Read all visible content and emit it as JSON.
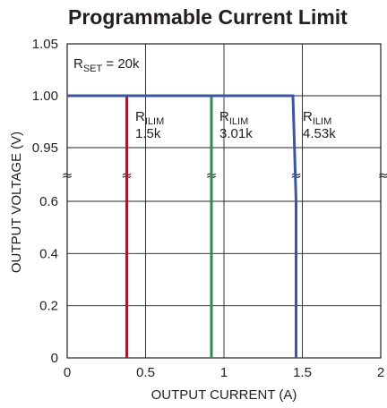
{
  "chart_data": {
    "type": "line",
    "title": "Programmable Current Limit",
    "xlabel": "OUTPUT CURRENT (A)",
    "ylabel": "OUTPUT VOLTAGE (V)",
    "xlim": [
      0,
      2
    ],
    "x_ticks": [
      "0",
      "0.5",
      "1",
      "1.5",
      "2"
    ],
    "y_ticks_upper": [
      "1.05",
      "1.00",
      "0.95"
    ],
    "y_ticks_lower": [
      "0.6",
      "0.4",
      "0.2",
      "0"
    ],
    "y_axis": "broken between 0.6 and 0.95",
    "grid": true,
    "annotation": {
      "main": "R",
      "sub": "SET",
      "rest": " = 20k"
    },
    "series_label_main": "R",
    "series_label_sub": "ILIM",
    "series": [
      {
        "label_value": "1.5k",
        "color": "#9e1b34",
        "x": [
          0,
          0.38,
          0.38,
          0.38
        ],
        "y": [
          1.0,
          1.0,
          0.6,
          0
        ]
      },
      {
        "label_value": "3.01k",
        "color": "#2e8b4f",
        "x": [
          0,
          0.92,
          0.92,
          0.92
        ],
        "y": [
          1.0,
          1.0,
          0.6,
          0
        ]
      },
      {
        "label_value": "4.53k",
        "color": "#3b55a4",
        "x": [
          0,
          1.44,
          1.46,
          1.46
        ],
        "y": [
          1.0,
          1.0,
          0.6,
          0
        ]
      }
    ]
  }
}
